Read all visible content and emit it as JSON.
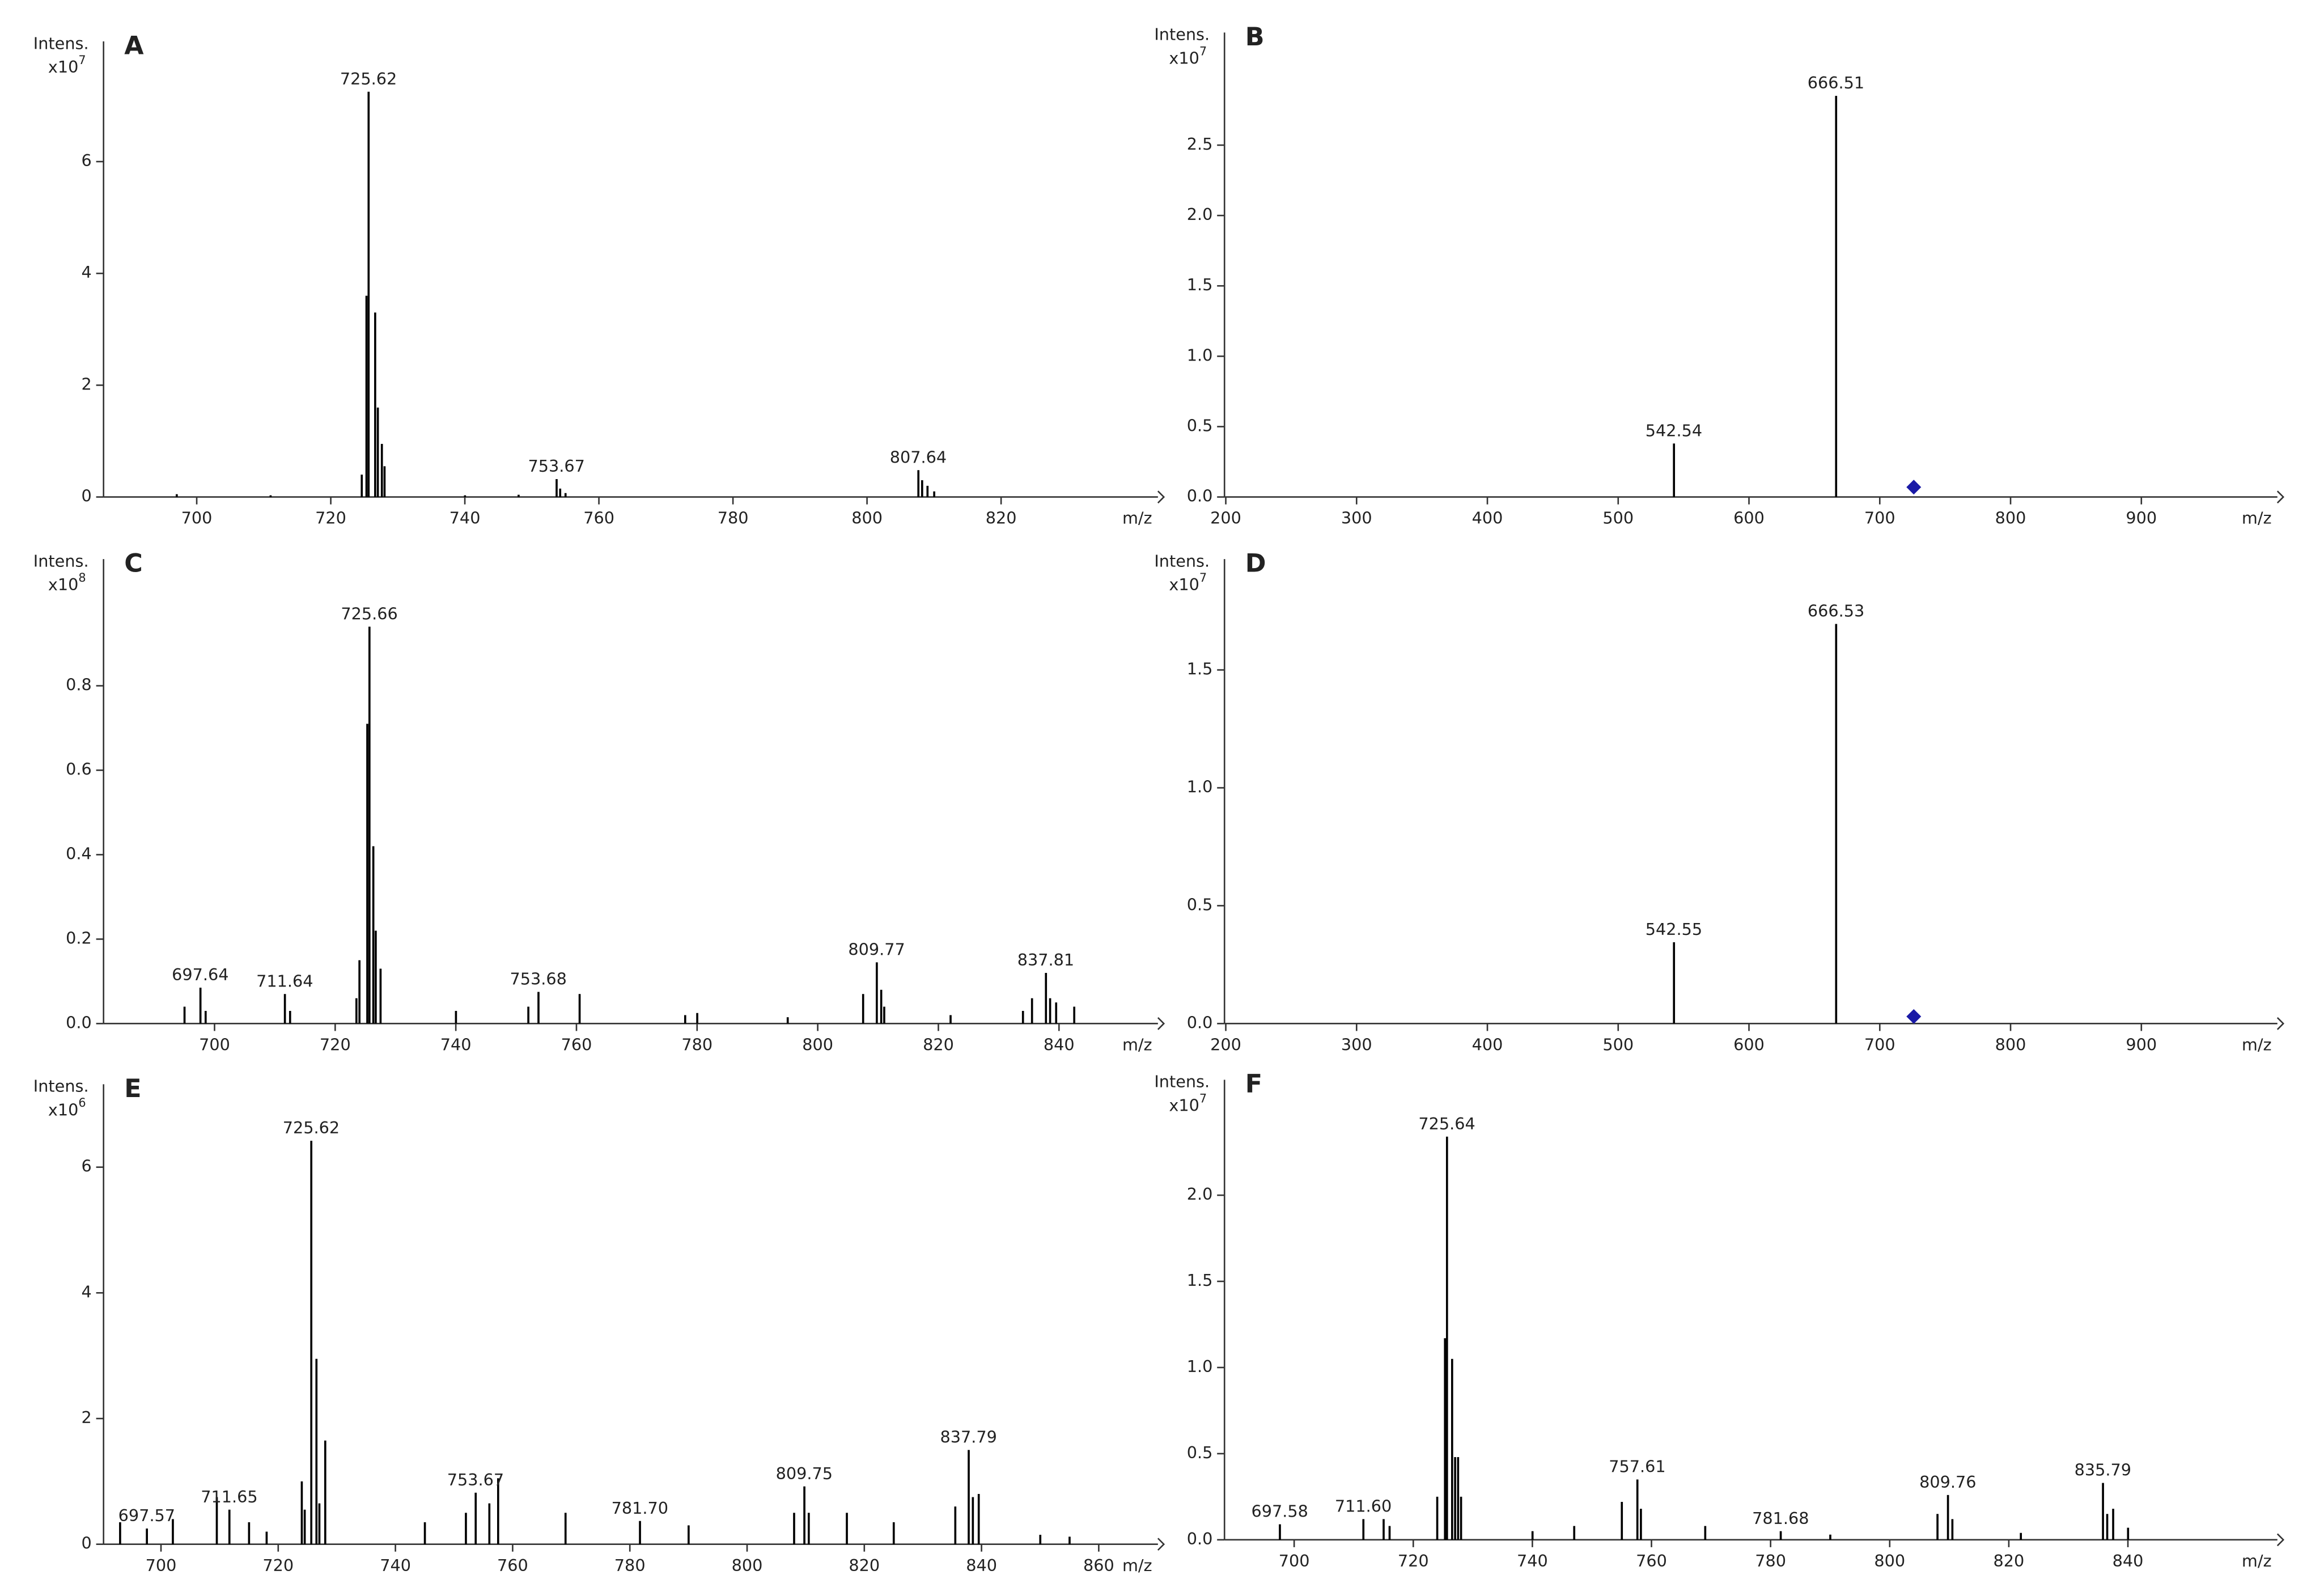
{
  "chart_data": [
    {
      "type": "bar",
      "title": "A",
      "y_label": "Intens.",
      "y_exponent_base": "x10",
      "y_exponent": "7",
      "x_label": "m/z",
      "color": "#000000",
      "x": [
        697,
        711,
        724.6,
        725.3,
        725.62,
        726.6,
        727.0,
        727.6,
        728.0,
        740,
        748,
        753.67,
        754.2,
        755,
        807.64,
        808.2,
        809.0,
        810.0
      ],
      "values": [
        0.05,
        0.03,
        0.4,
        3.6,
        7.25,
        3.3,
        1.6,
        0.95,
        0.55,
        0.03,
        0.04,
        0.32,
        0.15,
        0.07,
        0.48,
        0.3,
        0.2,
        0.1
      ],
      "xlim": [
        686.1,
        843.4
      ],
      "ylim": [
        0,
        8.15
      ],
      "xticks": [
        700,
        720,
        740,
        760,
        780,
        800,
        820
      ],
      "yticks": [
        0,
        2,
        4,
        6
      ],
      "annotations": [
        {
          "x": 725.62,
          "y": 7.25,
          "label": "725.62"
        },
        {
          "x": 753.67,
          "y": 0.32,
          "label": "753.67"
        },
        {
          "x": 807.64,
          "y": 0.48,
          "label": "807.64"
        }
      ]
    },
    {
      "type": "bar",
      "title": "B",
      "y_label": "Intens.",
      "y_exponent_base": "x10",
      "y_exponent": "7",
      "x_label": "m/z",
      "color": "#000000",
      "x": [
        542.54,
        666.51
      ],
      "values": [
        0.38,
        2.85
      ],
      "xlim": [
        199,
        1004
      ],
      "ylim": [
        0,
        3.3
      ],
      "xticks": [
        200,
        300,
        400,
        500,
        600,
        700,
        800,
        900
      ],
      "yticks": [
        {
          "value": 0,
          "label": "0.0"
        },
        0.5,
        {
          "value": 1,
          "label": "1.0"
        },
        1.5,
        {
          "value": 2,
          "label": "2.0"
        },
        2.5
      ],
      "annotations": [
        {
          "x": 542.54,
          "y": 0.38,
          "label": "542.54"
        },
        {
          "x": 666.51,
          "y": 2.85,
          "label": "666.51"
        }
      ],
      "marker": {
        "x": 726,
        "y": 0.07,
        "color": "#1a1aa6"
      }
    },
    {
      "type": "bar",
      "title": "C",
      "y_label": "Intens.",
      "y_exponent_base": "x10",
      "y_exponent": "8",
      "x_label": "m/z",
      "color": "#000000",
      "x": [
        695,
        697.64,
        698.5,
        711.64,
        712.5,
        723.5,
        724,
        725.3,
        725.66,
        726.3,
        726.7,
        727.5,
        740,
        752,
        753.68,
        760.5,
        778,
        780,
        795,
        807.5,
        809.77,
        810.5,
        811,
        822,
        834,
        835.5,
        837.81,
        838.5,
        839.5,
        842.5
      ],
      "values": [
        0.04,
        0.085,
        0.03,
        0.07,
        0.03,
        0.06,
        0.15,
        0.71,
        0.94,
        0.42,
        0.22,
        0.13,
        0.03,
        0.04,
        0.075,
        0.07,
        0.02,
        0.025,
        0.015,
        0.07,
        0.145,
        0.08,
        0.04,
        0.02,
        0.03,
        0.06,
        0.12,
        0.06,
        0.05,
        0.04
      ],
      "xlim": [
        681.6,
        856.4
      ],
      "ylim": [
        0,
        1.1
      ],
      "xticks": [
        700,
        720,
        740,
        760,
        780,
        800,
        820,
        840
      ],
      "yticks": [
        {
          "value": 0,
          "label": "0.0"
        },
        0.2,
        0.4,
        0.6,
        0.8
      ],
      "annotations": [
        {
          "x": 697.64,
          "y": 0.085,
          "label": "697.64"
        },
        {
          "x": 711.64,
          "y": 0.07,
          "label": "711.64"
        },
        {
          "x": 725.66,
          "y": 0.94,
          "label": "725.66"
        },
        {
          "x": 753.68,
          "y": 0.075,
          "label": "753.68"
        },
        {
          "x": 809.77,
          "y": 0.145,
          "label": "809.77"
        },
        {
          "x": 837.81,
          "y": 0.12,
          "label": "837.81"
        }
      ]
    },
    {
      "type": "bar",
      "title": "D",
      "y_label": "Intens.",
      "y_exponent_base": "x10",
      "y_exponent": "7",
      "x_label": "m/z",
      "color": "#000000",
      "x": [
        542.55,
        666.53
      ],
      "values": [
        0.345,
        1.695
      ],
      "xlim": [
        199,
        1004
      ],
      "ylim": [
        0,
        1.97
      ],
      "xticks": [
        200,
        300,
        400,
        500,
        600,
        700,
        800,
        900
      ],
      "yticks": [
        {
          "value": 0,
          "label": "0.0"
        },
        0.5,
        {
          "value": 1,
          "label": "1.0"
        },
        1.5
      ],
      "annotations": [
        {
          "x": 542.55,
          "y": 0.345,
          "label": "542.55"
        },
        {
          "x": 666.53,
          "y": 1.695,
          "label": "666.53"
        }
      ],
      "marker": {
        "x": 726,
        "y": 0.03,
        "color": "#1a1aa6"
      }
    },
    {
      "type": "bar",
      "title": "E",
      "y_label": "Intens.",
      "y_exponent_base": "x10",
      "y_exponent": "6",
      "x_label": "m/z",
      "color": "#000000",
      "x": [
        693,
        697.57,
        702,
        709.5,
        711.65,
        715,
        718,
        724,
        724.5,
        725.62,
        726.5,
        727,
        728,
        745,
        752,
        753.67,
        756,
        757.5,
        769,
        781.7,
        790,
        808,
        809.75,
        810.5,
        817,
        825,
        835.5,
        837.79,
        838.5,
        839.5,
        850,
        855
      ],
      "values": [
        0.35,
        0.25,
        0.4,
        0.75,
        0.55,
        0.35,
        0.2,
        1.0,
        0.55,
        6.42,
        2.95,
        0.65,
        1.65,
        0.35,
        0.5,
        0.82,
        0.65,
        1.05,
        0.5,
        0.37,
        0.3,
        0.5,
        0.92,
        0.5,
        0.5,
        0.35,
        0.6,
        1.5,
        0.75,
        0.8,
        0.15,
        0.12
      ],
      "xlim": [
        690.2,
        870.1
      ],
      "ylim": [
        0,
        7.32
      ],
      "xticks": [
        700,
        720,
        740,
        760,
        780,
        800,
        820,
        840,
        860
      ],
      "yticks": [
        0,
        2,
        4,
        6
      ],
      "annotations": [
        {
          "x": 697.57,
          "y": 0.25,
          "label": "697.57"
        },
        {
          "x": 711.65,
          "y": 0.55,
          "label": "711.65"
        },
        {
          "x": 725.62,
          "y": 6.42,
          "label": "725.62"
        },
        {
          "x": 753.67,
          "y": 0.82,
          "label": "753.67"
        },
        {
          "x": 781.7,
          "y": 0.37,
          "label": "781.70"
        },
        {
          "x": 809.75,
          "y": 0.92,
          "label": "809.75"
        },
        {
          "x": 837.79,
          "y": 1.5,
          "label": "837.79"
        }
      ]
    },
    {
      "type": "bar",
      "title": "F",
      "y_label": "Intens.",
      "y_exponent_base": "x10",
      "y_exponent": "7",
      "x_label": "m/z",
      "color": "#000000",
      "x": [
        697.58,
        711.6,
        715,
        716,
        724,
        725.3,
        725.64,
        726.5,
        727,
        727.5,
        728,
        740,
        747,
        755,
        757.61,
        758.2,
        769,
        781.68,
        790,
        808,
        809.76,
        810.5,
        822,
        835.79,
        836.5,
        837.5,
        840
      ],
      "values": [
        0.09,
        0.12,
        0.12,
        0.08,
        0.25,
        1.17,
        2.34,
        1.05,
        0.48,
        0.48,
        0.25,
        0.05,
        0.08,
        0.22,
        0.35,
        0.18,
        0.08,
        0.05,
        0.03,
        0.15,
        0.26,
        0.12,
        0.04,
        0.33,
        0.15,
        0.18,
        0.07
      ],
      "xlim": [
        688.3,
        865.1
      ],
      "ylim": [
        0,
        2.67
      ],
      "xticks": [
        700,
        720,
        740,
        760,
        780,
        800,
        820,
        840
      ],
      "yticks": [
        {
          "value": 0,
          "label": "0.0"
        },
        0.5,
        {
          "value": 1,
          "label": "1.0"
        },
        1.5,
        {
          "value": 2,
          "label": "2.0"
        }
      ],
      "annotations": [
        {
          "x": 697.58,
          "y": 0.09,
          "label": "697.58"
        },
        {
          "x": 711.6,
          "y": 0.12,
          "label": "711.60"
        },
        {
          "x": 725.64,
          "y": 2.34,
          "label": "725.64"
        },
        {
          "x": 757.61,
          "y": 0.35,
          "label": "757.61"
        },
        {
          "x": 781.68,
          "y": 0.05,
          "label": "781.68"
        },
        {
          "x": 809.76,
          "y": 0.26,
          "label": "809.76"
        },
        {
          "x": 835.79,
          "y": 0.33,
          "label": "835.79"
        }
      ]
    }
  ]
}
